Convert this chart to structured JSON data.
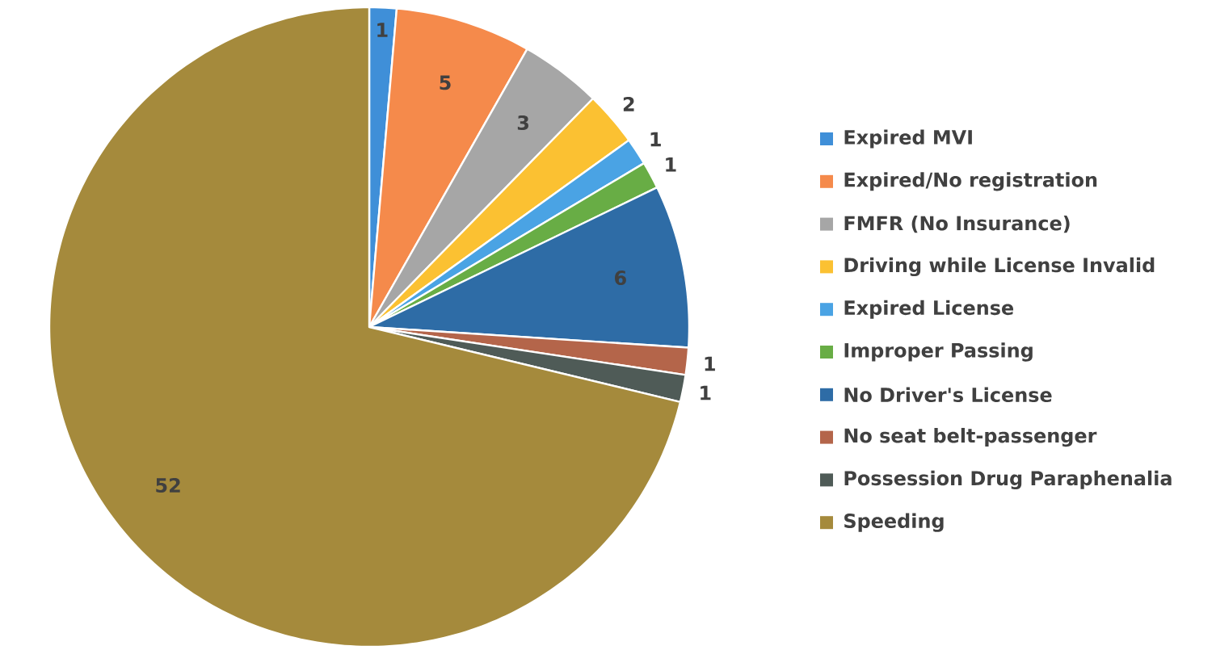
{
  "chart_data": {
    "type": "pie",
    "categories": [
      "Expired MVI",
      "Expired/No registration",
      "FMFR (No Insurance)",
      "Driving while License Invalid",
      "Expired License",
      "Improper Passing",
      "No Driver's License",
      "No seat belt-passenger",
      "Possession Drug Paraphenalia",
      "Speeding"
    ],
    "values": [
      1,
      5,
      3,
      2,
      1,
      1,
      6,
      1,
      1,
      52
    ],
    "colors": [
      "#3f8fd8",
      "#f58a4b",
      "#a6a6a6",
      "#fbc132",
      "#4aa3e4",
      "#68ad45",
      "#2e6ca6",
      "#b4654a",
      "#4f5b57",
      "#a58a3c"
    ],
    "data_labels": true,
    "legend": "right"
  }
}
